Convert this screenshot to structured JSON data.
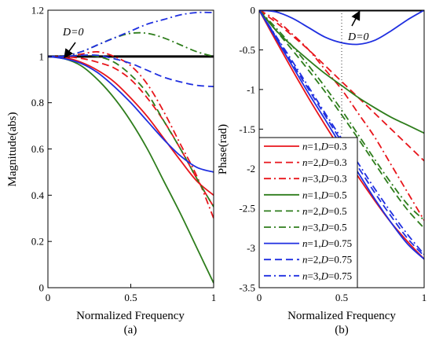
{
  "chart_data": [
    {
      "type": "line",
      "caption": "(a)",
      "xlabel": "Normalized Frequency",
      "ylabel": "Magnitude(abs)",
      "xlim": [
        0,
        1
      ],
      "ylim": [
        0,
        1.2
      ],
      "xticks": [
        "0",
        "0.5",
        "1"
      ],
      "xtick_values": [
        0,
        0.5,
        1
      ],
      "yticks": [
        "0",
        "0.2",
        "0.4",
        "0.6",
        "0.8",
        "1",
        "1.2"
      ],
      "ytick_values": [
        0,
        0.2,
        0.4,
        0.6,
        0.8,
        1,
        1.2
      ],
      "grid": false,
      "annotation": {
        "text": "D=0",
        "points_to": [
          0.1,
          1.0
        ]
      },
      "x": [
        0,
        0.1,
        0.2,
        0.3,
        0.4,
        0.5,
        0.6,
        0.7,
        0.8,
        0.9,
        1.0
      ],
      "series": [
        {
          "name": "D=0",
          "color": "#000000",
          "dash": "solid",
          "width": 3,
          "values": [
            1,
            1,
            1,
            1,
            1,
            1,
            1,
            1,
            1,
            1,
            1
          ]
        },
        {
          "name": "n=1,D=0.3",
          "color": "#e8151b",
          "dash": "solid",
          "values": [
            1,
            0.995,
            0.975,
            0.94,
            0.89,
            0.82,
            0.74,
            0.645,
            0.55,
            0.46,
            0.4
          ]
        },
        {
          "name": "n=2,D=0.3",
          "color": "#e8151b",
          "dash": "dash",
          "values": [
            1,
            0.999,
            0.992,
            0.975,
            0.95,
            0.9,
            0.82,
            0.72,
            0.6,
            0.47,
            0.35
          ]
        },
        {
          "name": "n=3,D=0.3",
          "color": "#e8151b",
          "dash": "dashdot",
          "values": [
            1,
            1.0,
            1.01,
            1.02,
            1.0,
            0.96,
            0.88,
            0.76,
            0.62,
            0.48,
            0.3
          ]
        },
        {
          "name": "n=1,D=0.5",
          "color": "#2e7d1c",
          "dash": "solid",
          "values": [
            1,
            0.99,
            0.96,
            0.9,
            0.82,
            0.72,
            0.6,
            0.46,
            0.32,
            0.17,
            0.02
          ]
        },
        {
          "name": "n=2,D=0.5",
          "color": "#2e7d1c",
          "dash": "dash",
          "values": [
            1,
            1.0,
            1.005,
            1.0,
            0.975,
            0.92,
            0.84,
            0.72,
            0.6,
            0.47,
            0.35
          ]
        },
        {
          "name": "n=3,D=0.5",
          "color": "#2e7d1c",
          "dash": "dashdot",
          "values": [
            1,
            1.003,
            1.02,
            1.05,
            1.08,
            1.1,
            1.1,
            1.08,
            1.05,
            1.02,
            1.0
          ]
        },
        {
          "name": "n=1,D=0.75",
          "color": "#1f2fe0",
          "dash": "solid",
          "values": [
            1,
            0.99,
            0.97,
            0.93,
            0.87,
            0.8,
            0.72,
            0.64,
            0.57,
            0.52,
            0.5
          ]
        },
        {
          "name": "n=2,D=0.75",
          "color": "#1f2fe0",
          "dash": "dash",
          "values": [
            1,
            1.0,
            1.005,
            1.005,
            0.99,
            0.97,
            0.94,
            0.91,
            0.89,
            0.875,
            0.87
          ]
        },
        {
          "name": "n=3,D=0.75",
          "color": "#1f2fe0",
          "dash": "dashdot",
          "values": [
            1,
            1.003,
            1.02,
            1.05,
            1.08,
            1.11,
            1.14,
            1.16,
            1.18,
            1.19,
            1.19
          ]
        }
      ]
    },
    {
      "type": "line",
      "caption": "(b)",
      "xlabel": "Normalized Frequency",
      "ylabel": "Phase(rad)",
      "xlim": [
        0,
        1
      ],
      "ylim": [
        -3.5,
        0
      ],
      "xticks": [
        "0",
        "0.5",
        "1"
      ],
      "xtick_values": [
        0,
        0.5,
        1
      ],
      "yticks": [
        "0",
        "-0.5",
        "-1",
        "-1.5",
        "-2",
        "-2.5",
        "-3",
        "-3.5"
      ],
      "ytick_values": [
        0,
        -0.5,
        -1,
        -1.5,
        -2,
        -2.5,
        -3,
        -3.5
      ],
      "grid": false,
      "annotation": {
        "text": "D=0",
        "points_to": [
          0.4,
          -0.05
        ]
      },
      "legend": {
        "placement": "bottom-left"
      },
      "x": [
        0,
        0.1,
        0.2,
        0.3,
        0.4,
        0.5,
        0.6,
        0.7,
        0.8,
        0.9,
        1.0
      ],
      "series": [
        {
          "name": "D=0",
          "color": "#000000",
          "dash": "solid",
          "width": 3,
          "legend": false,
          "values": [
            0,
            0,
            0,
            0,
            0,
            0,
            0,
            0,
            0,
            0,
            0
          ]
        },
        {
          "name": "n=1,D=0.3",
          "color": "#e8151b",
          "dash": "solid",
          "label_n": "n",
          "label_rest": "=1,",
          "label_d": "D",
          "label_val": "=0.3",
          "values": [
            0,
            -0.38,
            -0.75,
            -1.11,
            -1.45,
            -1.78,
            -2.1,
            -2.4,
            -2.68,
            -2.92,
            -3.14
          ]
        },
        {
          "name": "n=2,D=0.3",
          "color": "#e8151b",
          "dash": "dash",
          "label_n": "n",
          "label_rest": "=2,",
          "label_d": "D",
          "label_val": "=0.3",
          "values": [
            0,
            -0.15,
            -0.32,
            -0.5,
            -0.7,
            -0.9,
            -1.1,
            -1.3,
            -1.5,
            -1.7,
            -1.9
          ]
        },
        {
          "name": "n=3,D=0.3",
          "color": "#e8151b",
          "dash": "dashdot",
          "label_n": "n",
          "label_rest": "=3,",
          "label_d": "D",
          "label_val": "=0.3",
          "values": [
            0,
            -0.12,
            -0.3,
            -0.5,
            -0.75,
            -1.0,
            -1.3,
            -1.6,
            -1.95,
            -2.3,
            -2.65
          ]
        },
        {
          "name": "n=1,D=0.5",
          "color": "#2e7d1c",
          "dash": "solid",
          "label_n": "n",
          "label_rest": "=1,",
          "label_d": "D",
          "label_val": "=0.5",
          "values": [
            0,
            -0.25,
            -0.45,
            -0.63,
            -0.8,
            -0.95,
            -1.1,
            -1.23,
            -1.35,
            -1.45,
            -1.55
          ]
        },
        {
          "name": "n=2,D=0.5",
          "color": "#2e7d1c",
          "dash": "dash",
          "label_n": "n",
          "label_rest": "=2,",
          "label_d": "D",
          "label_val": "=0.5",
          "values": [
            0,
            -0.25,
            -0.5,
            -0.76,
            -1.03,
            -1.32,
            -1.62,
            -1.93,
            -2.24,
            -2.52,
            -2.75
          ]
        },
        {
          "name": "n=3,D=0.5",
          "color": "#2e7d1c",
          "dash": "dashdot",
          "label_n": "n",
          "label_rest": "=3,",
          "label_d": "D",
          "label_val": "=0.5",
          "values": [
            0,
            -0.22,
            -0.45,
            -0.7,
            -0.97,
            -1.26,
            -1.57,
            -1.88,
            -2.18,
            -2.45,
            -2.65
          ]
        },
        {
          "name": "n=1,D=0.75",
          "color": "#1f2fe0",
          "dash": "solid",
          "label_n": "n",
          "label_rest": "=1,",
          "label_d": "D",
          "label_val": "=0.75",
          "values": [
            0,
            -0.35,
            -0.7,
            -1.05,
            -1.38,
            -1.72,
            -2.05,
            -2.38,
            -2.68,
            -2.95,
            -3.14
          ]
        },
        {
          "name": "n=2,D=0.75",
          "color": "#1f2fe0",
          "dash": "dash",
          "label_n": "n",
          "label_rest": "=2,",
          "label_d": "D",
          "label_val": "=0.75",
          "values": [
            0,
            -0.33,
            -0.67,
            -1.0,
            -1.33,
            -1.66,
            -1.98,
            -2.3,
            -2.6,
            -2.88,
            -3.1
          ]
        },
        {
          "name": "n=3,D=0.75",
          "color": "#1f2fe0",
          "dash": "dashdot",
          "label_n": "n",
          "label_rest": "=3,",
          "label_d": "D",
          "label_val": "=0.75",
          "values": [
            0,
            -0.32,
            -0.64,
            -0.97,
            -1.3,
            -1.62,
            -1.93,
            -2.25,
            -2.55,
            -2.83,
            -3.08
          ]
        },
        {
          "name": "D=0 curve",
          "color": "#1f2fe0",
          "dash": "solid",
          "legend": false,
          "values": [
            0,
            -0.02,
            -0.1,
            -0.22,
            -0.34,
            -0.41,
            -0.43,
            -0.38,
            -0.26,
            -0.12,
            0
          ]
        }
      ]
    }
  ]
}
